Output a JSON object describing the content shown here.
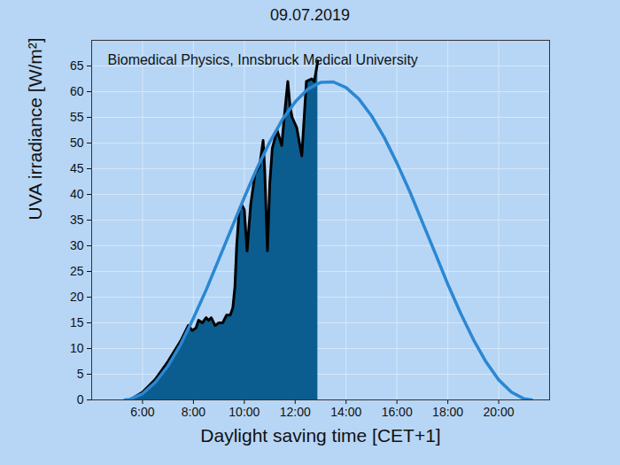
{
  "chart_data": {
    "type": "line",
    "title": "09.07.2019",
    "x_label": "Daylight saving time [CET+1]",
    "y_label": "UVA irradiance [W/m²]",
    "annotations": [
      "Biomedical Physics, Innsbruck Medical University"
    ],
    "xlim": [
      4,
      22
    ],
    "xticks": [
      {
        "value": 6,
        "label": "6:00"
      },
      {
        "value": 8,
        "label": "8:00"
      },
      {
        "value": 10,
        "label": "10:00"
      },
      {
        "value": 12,
        "label": "12:00"
      },
      {
        "value": 14,
        "label": "14:00"
      },
      {
        "value": 16,
        "label": "16:00"
      },
      {
        "value": 18,
        "label": "18:00"
      },
      {
        "value": 20,
        "label": "20:00"
      }
    ],
    "ylim": [
      0,
      70
    ],
    "yticks": [
      0,
      5,
      10,
      15,
      20,
      25,
      30,
      35,
      40,
      45,
      50,
      55,
      60,
      65
    ],
    "grid": true,
    "series": [
      {
        "type": "area",
        "color": "#0b5d8f",
        "x": [
          5.6,
          6.0,
          6.5,
          7.0,
          7.5,
          7.8,
          7.95,
          8.1,
          8.2,
          8.35,
          8.5,
          8.6,
          8.7,
          8.85,
          9.0,
          9.15,
          9.3,
          9.45,
          9.55,
          9.63,
          9.7,
          9.8,
          9.9,
          10.0,
          10.11,
          10.25,
          10.42,
          10.6,
          10.74,
          10.8,
          10.91,
          11.0,
          11.1,
          11.29,
          11.47,
          11.57,
          11.71,
          11.8,
          11.88,
          12.06,
          12.26,
          12.44,
          12.65,
          12.75,
          12.89
        ],
        "values": [
          0.3,
          1.5,
          4,
          7.5,
          11.5,
          14.5,
          13.5,
          14,
          15.5,
          15,
          16,
          15.5,
          16,
          14.5,
          15,
          15,
          16.5,
          16.5,
          18,
          22,
          30,
          37,
          38,
          37,
          29,
          38,
          44,
          45.5,
          50.5,
          45,
          29,
          42,
          49,
          52.5,
          49.5,
          55,
          62,
          57,
          55,
          53,
          47.5,
          62,
          62.5,
          62,
          66
        ]
      },
      {
        "type": "line",
        "color": "#2b87d3",
        "x": [
          5.3,
          5.5,
          6.0,
          6.5,
          7.0,
          7.5,
          8.0,
          8.5,
          9.0,
          9.5,
          10.0,
          10.5,
          11.0,
          11.5,
          12.0,
          12.5,
          13.0,
          13.5,
          14.0,
          14.5,
          15.0,
          15.5,
          16.0,
          16.5,
          17.0,
          17.5,
          18.0,
          18.5,
          19.0,
          19.5,
          20.0,
          20.5,
          21.0,
          21.3
        ],
        "values": [
          0,
          0.1,
          1.2,
          3.4,
          6.6,
          10.8,
          15.9,
          21.4,
          27.4,
          33.4,
          39.4,
          45.1,
          50.2,
          54.6,
          58.0,
          60.5,
          61.8,
          61.9,
          60.8,
          58.6,
          55.3,
          51.1,
          46.1,
          40.6,
          34.6,
          28.6,
          22.5,
          16.9,
          11.8,
          7.4,
          3.9,
          1.5,
          0.2,
          0
        ]
      }
    ]
  }
}
